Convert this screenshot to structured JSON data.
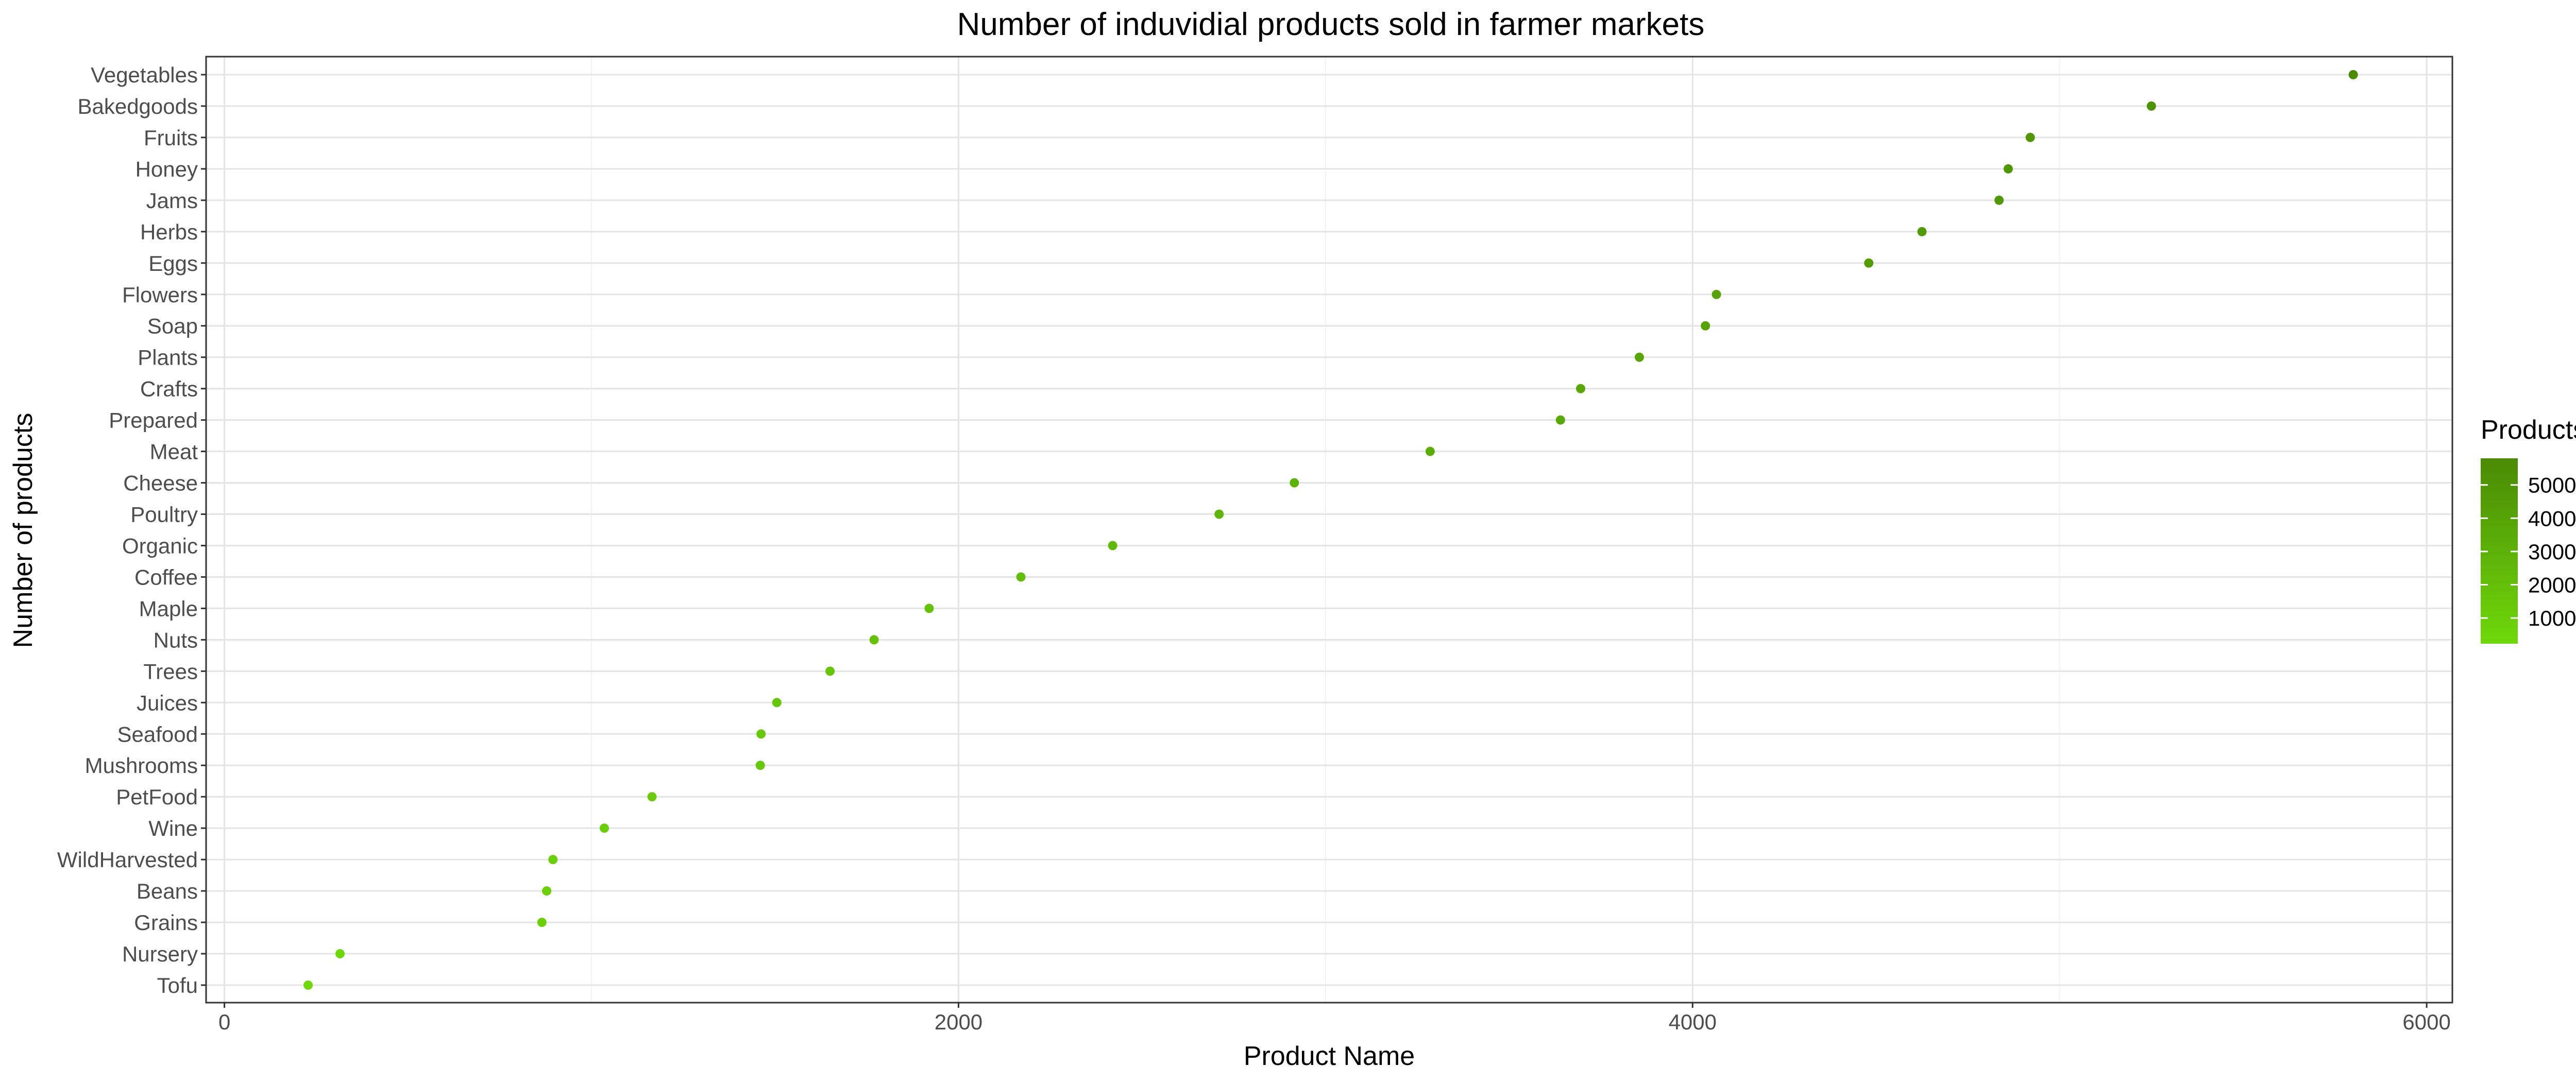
{
  "chart_data": {
    "type": "scatter",
    "title": "Number of induvidial products sold in farmer markets",
    "xlabel": "Product Name",
    "ylabel": "Number of products",
    "xlim": [
      -50,
      6070
    ],
    "x_ticks": [
      0,
      2000,
      4000,
      6000
    ],
    "x_tick_labels": [
      "0",
      "2000",
      "4000",
      "6000"
    ],
    "grid": true,
    "legend": {
      "title": "Products Count",
      "position": "right",
      "entries": [
        "5000",
        "4000",
        "3000",
        "2000",
        "1000"
      ],
      "entry_values": [
        5000,
        4000,
        3000,
        2000,
        1000
      ],
      "range": [
        228,
        5800
      ]
    },
    "colors": {
      "low": "#6fd80a",
      "high": "#4a8a05",
      "point": "#59a800"
    },
    "categories": [
      "Tofu",
      "Nursery",
      "Grains",
      "Beans",
      "WildHarvested",
      "Wine",
      "PetFood",
      "Mushrooms",
      "Seafood",
      "Juices",
      "Trees",
      "Nuts",
      "Maple",
      "Coffee",
      "Organic",
      "Poultry",
      "Cheese",
      "Meat",
      "Prepared",
      "Crafts",
      "Plants",
      "Soap",
      "Flowers",
      "Eggs",
      "Herbs",
      "Jams",
      "Honey",
      "Fruits",
      "Bakedgoods",
      "Vegetables"
    ],
    "values": [
      228,
      315,
      865,
      878,
      895,
      1035,
      1165,
      1460,
      1462,
      1505,
      1650,
      1770,
      1920,
      2170,
      2420,
      2710,
      2915,
      3285,
      3640,
      3695,
      3855,
      4035,
      4065,
      4480,
      4625,
      4835,
      4860,
      4920,
      5250,
      5800
    ]
  }
}
